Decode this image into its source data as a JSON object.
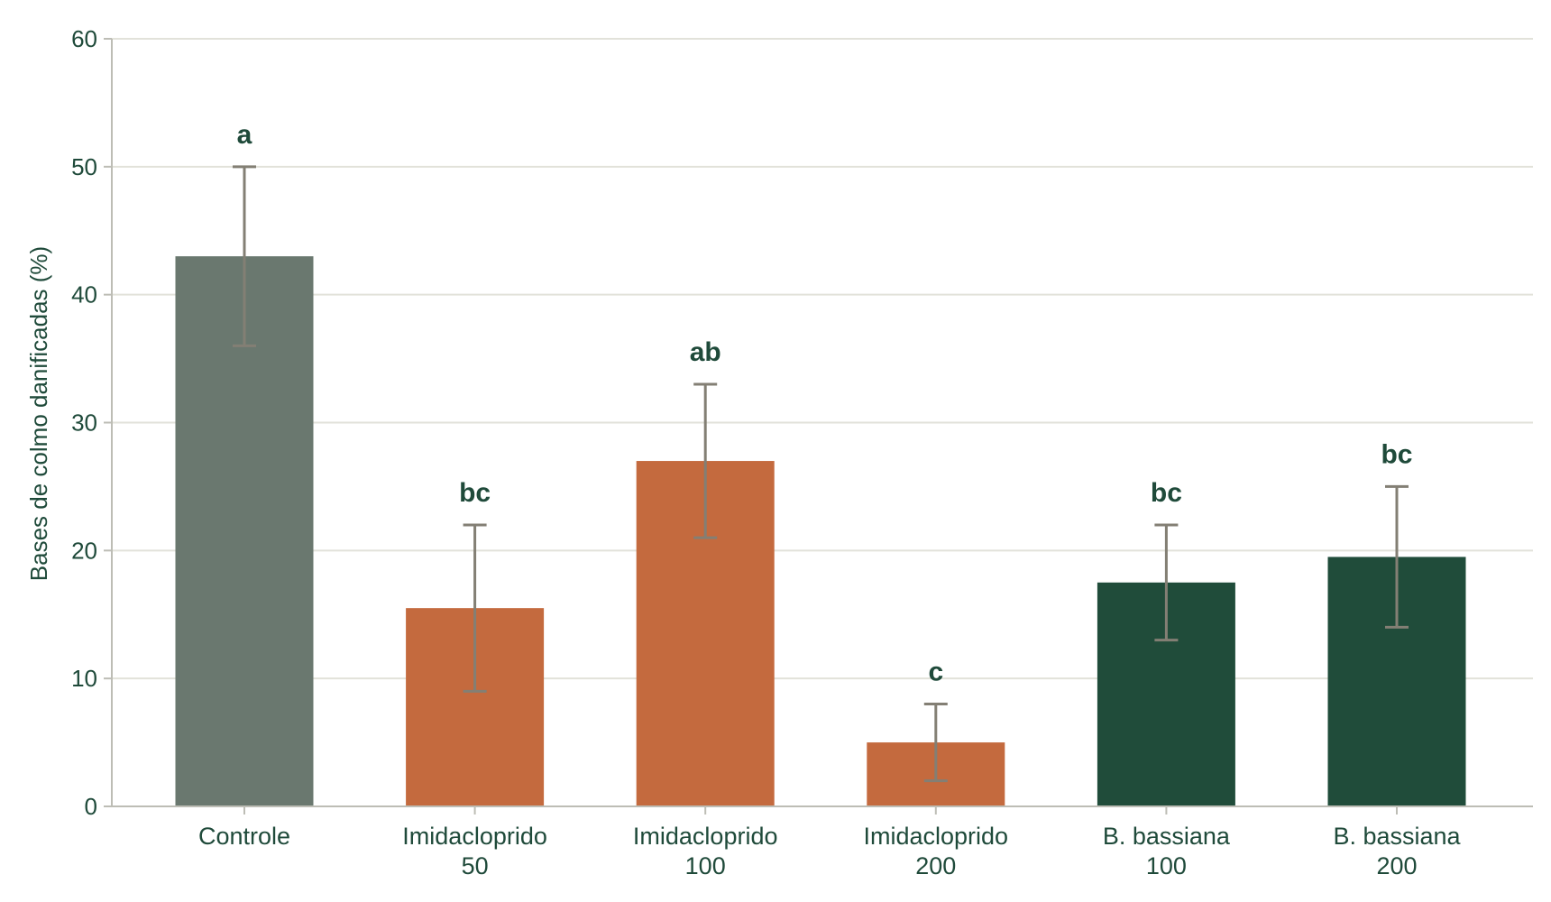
{
  "chart_data": {
    "type": "bar",
    "title": "",
    "xlabel": "",
    "ylabel": "Bases de colmo danificadas (%)",
    "ylim": [
      0,
      60
    ],
    "yticks": [
      0,
      10,
      20,
      30,
      40,
      50,
      60
    ],
    "grid": true,
    "categories": [
      [
        "Controle"
      ],
      [
        "Imidacloprido",
        "50"
      ],
      [
        "Imidacloprido",
        "100"
      ],
      [
        "Imidacloprido",
        "200"
      ],
      [
        "B. bassiana",
        "100"
      ],
      [
        "B. bassiana",
        "200"
      ]
    ],
    "values": [
      43,
      15.5,
      27,
      5,
      17.5,
      19.5
    ],
    "error_low": [
      36,
      9,
      21,
      2,
      13,
      14
    ],
    "error_high": [
      50,
      22,
      33,
      8,
      22,
      25
    ],
    "significance": [
      "a",
      "bc",
      "ab",
      "c",
      "bc",
      "bc"
    ],
    "colors": [
      "#6a786f",
      "#c46a3e",
      "#c46a3e",
      "#c46a3e",
      "#204c3a",
      "#204c3a"
    ],
    "grid_color": "#e2e2da",
    "axis_color": "#bdbdb5",
    "error_color": "#837f74",
    "text_color": "#1f4a3a"
  }
}
